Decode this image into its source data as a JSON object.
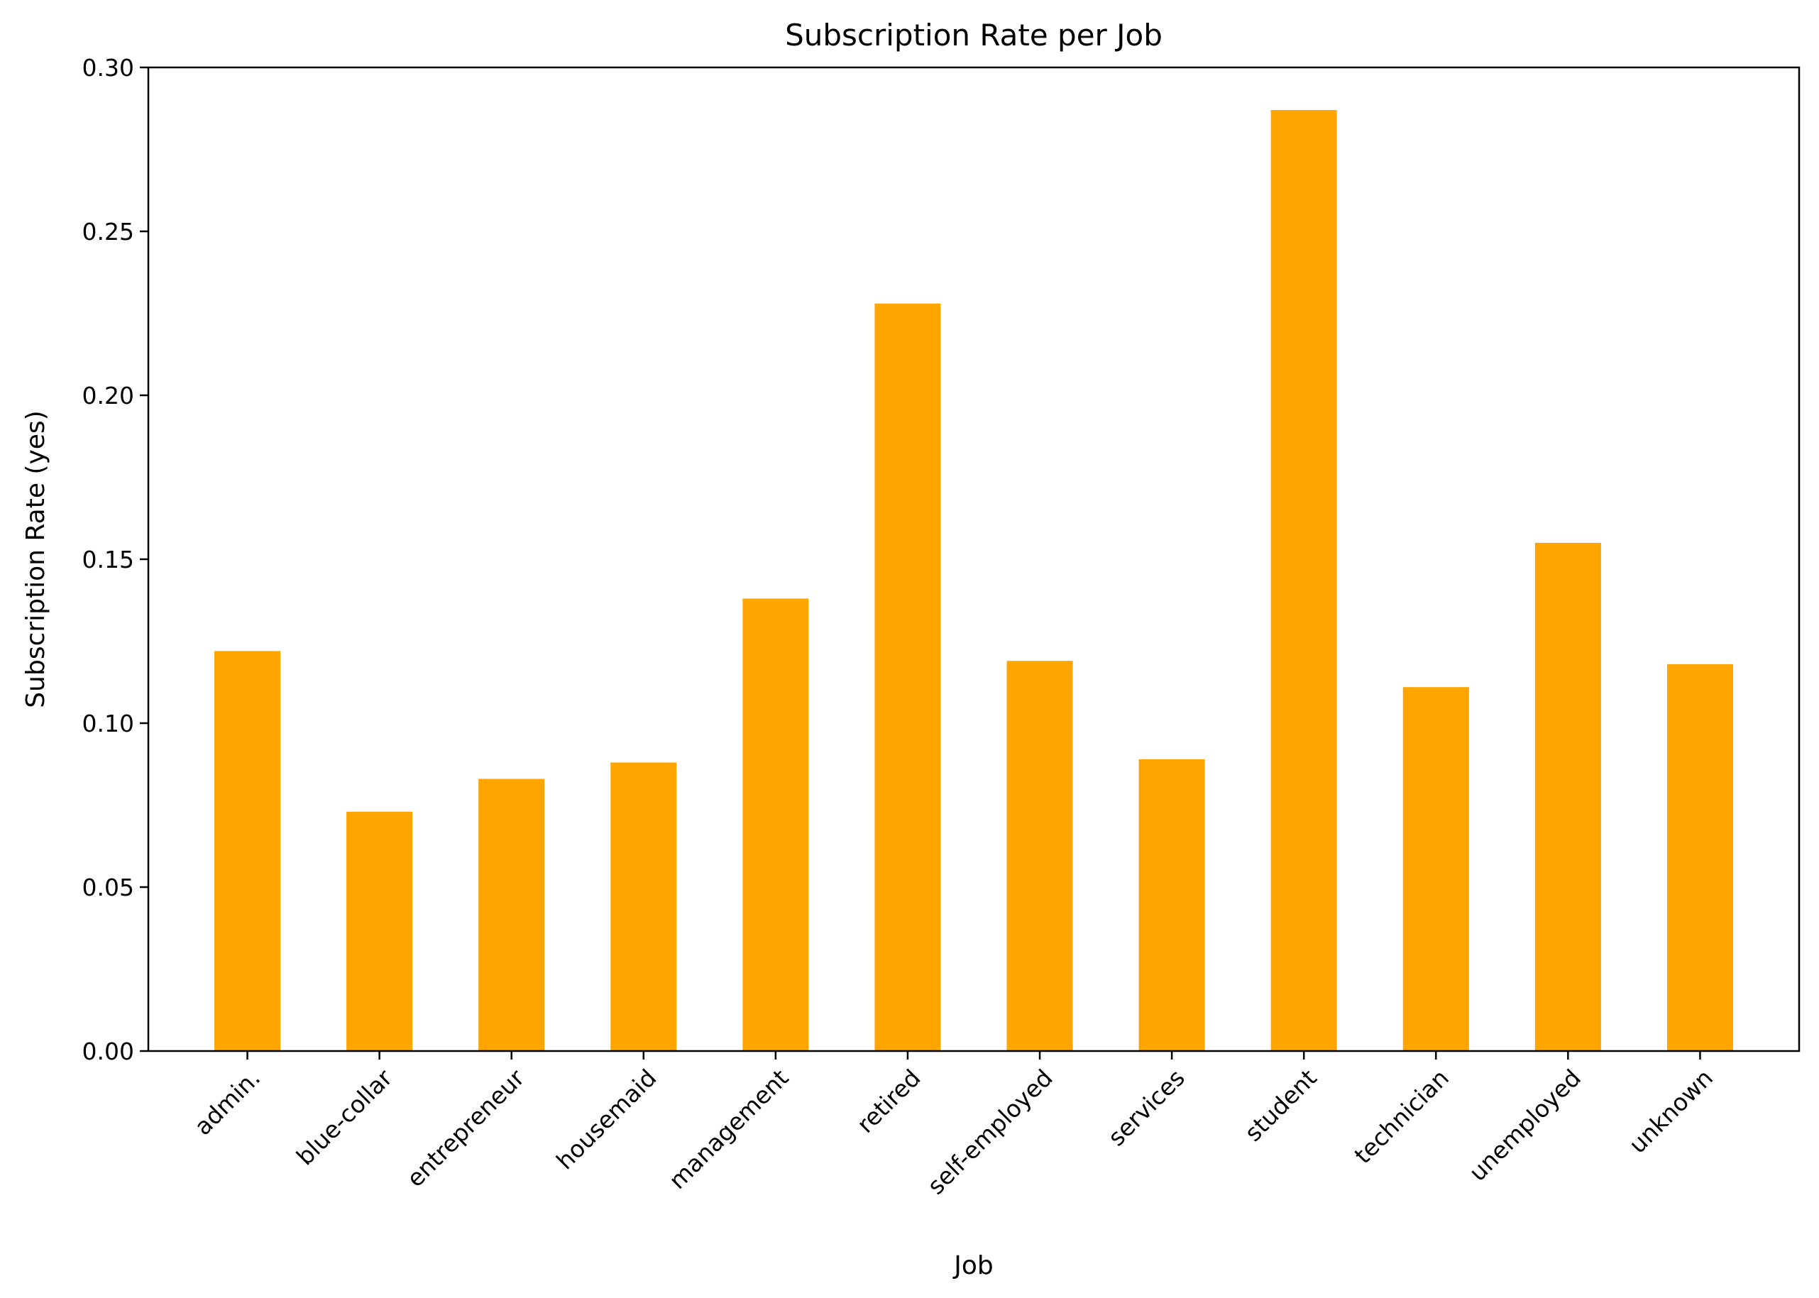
{
  "chart_data": {
    "type": "bar",
    "title": "Subscription Rate per Job",
    "xlabel": "Job",
    "ylabel": "Subscription Rate (yes)",
    "categories": [
      "admin.",
      "blue-collar",
      "entrepreneur",
      "housemaid",
      "management",
      "retired",
      "self-employed",
      "services",
      "student",
      "technician",
      "unemployed",
      "unknown"
    ],
    "values": [
      0.122,
      0.073,
      0.083,
      0.088,
      0.138,
      0.228,
      0.119,
      0.089,
      0.287,
      0.111,
      0.155,
      0.118
    ],
    "ylim": [
      0,
      0.3
    ],
    "yticks": [
      "0.00",
      "0.05",
      "0.10",
      "0.15",
      "0.20",
      "0.25",
      "0.30"
    ],
    "ytick_values": [
      0,
      0.05,
      0.1,
      0.15,
      0.2,
      0.25,
      0.3
    ],
    "bar_color": "#FFA500",
    "grid": false,
    "legend": "none"
  }
}
